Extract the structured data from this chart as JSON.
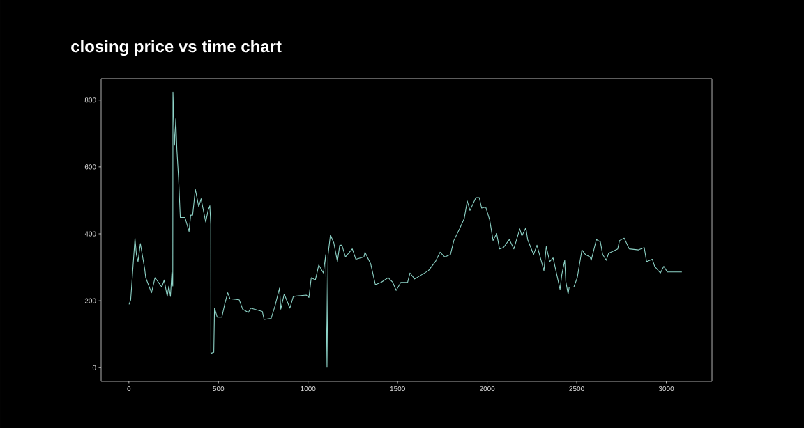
{
  "chart_data": {
    "type": "line",
    "title": "closing price vs time chart",
    "color": "#8dd3c7",
    "x": [
      1,
      10,
      20,
      34,
      42,
      51,
      64,
      88,
      94,
      126,
      146,
      184,
      197,
      214,
      223,
      232,
      240,
      245,
      246,
      255,
      262,
      268,
      278,
      287,
      313,
      336,
      345,
      356,
      371,
      390,
      403,
      429,
      442,
      452,
      457,
      458,
      474,
      478,
      493,
      519,
      536,
      552,
      564,
      616,
      635,
      667,
      680,
      745,
      755,
      794,
      816,
      841,
      848,
      867,
      899,
      918,
      990,
      1005,
      1018,
      1041,
      1060,
      1086,
      1099,
      1106,
      1112,
      1125,
      1144,
      1164,
      1177,
      1189,
      1209,
      1247,
      1267,
      1312,
      1318,
      1350,
      1376,
      1408,
      1447,
      1473,
      1492,
      1518,
      1556,
      1569,
      1595,
      1672,
      1711,
      1737,
      1763,
      1795,
      1814,
      1846,
      1872,
      1889,
      1904,
      1937,
      1956,
      1969,
      1992,
      2014,
      2033,
      2053,
      2069,
      2091,
      2124,
      2149,
      2182,
      2194,
      2216,
      2226,
      2259,
      2278,
      2317,
      2330,
      2349,
      2368,
      2407,
      2417,
      2433,
      2439,
      2452,
      2458,
      2484,
      2503,
      2529,
      2549,
      2574,
      2581,
      2610,
      2632,
      2645,
      2665,
      2678,
      2729,
      2739,
      2765,
      2793,
      2845,
      2877,
      2890,
      2922,
      2935,
      2967,
      2986,
      3006,
      3087
    ],
    "values": [
      189,
      203,
      279,
      387,
      338,
      317,
      371,
      296,
      269,
      224,
      269,
      241,
      262,
      213,
      244,
      213,
      286,
      244,
      824,
      665,
      744,
      651,
      560,
      449,
      449,
      407,
      456,
      456,
      533,
      481,
      505,
      435,
      470,
      484,
      428,
      43,
      46,
      178,
      151,
      151,
      192,
      224,
      206,
      203,
      175,
      165,
      178,
      168,
      144,
      147,
      185,
      238,
      175,
      220,
      178,
      213,
      217,
      210,
      269,
      262,
      307,
      283,
      338,
      1,
      338,
      397,
      373,
      317,
      366,
      366,
      331,
      355,
      324,
      331,
      345,
      310,
      248,
      255,
      269,
      255,
      231,
      255,
      255,
      283,
      265,
      290,
      317,
      345,
      331,
      338,
      380,
      415,
      446,
      498,
      470,
      508,
      508,
      477,
      480,
      442,
      380,
      401,
      355,
      359,
      383,
      355,
      415,
      394,
      418,
      383,
      338,
      366,
      290,
      362,
      317,
      328,
      234,
      279,
      321,
      258,
      220,
      241,
      241,
      269,
      352,
      338,
      331,
      321,
      383,
      376,
      338,
      321,
      342,
      355,
      380,
      387,
      355,
      352,
      359,
      317,
      324,
      303,
      283,
      303,
      286,
      286
    ],
    "xlim": [
      -155,
      3255
    ],
    "ylim": [
      -41,
      864
    ],
    "xticks": [
      0,
      500,
      1000,
      1500,
      2000,
      2500,
      3000
    ],
    "yticks": [
      0,
      200,
      400,
      600,
      800
    ]
  }
}
